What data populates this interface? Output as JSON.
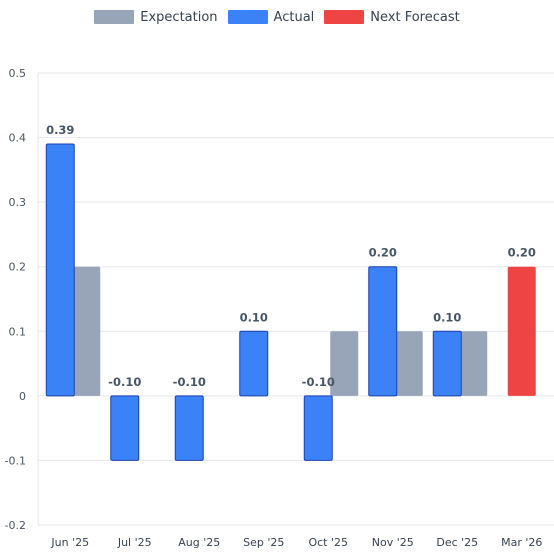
{
  "chart_data": {
    "type": "bar",
    "categories": [
      "Jun '25",
      "Jul '25",
      "Aug '25",
      "Sep '25",
      "Oct '25",
      "Nov '25",
      "Dec '25",
      "Mar '26"
    ],
    "series": [
      {
        "name": "Expectation",
        "color": "#98a4b7",
        "values": [
          0.2,
          null,
          null,
          null,
          0.1,
          0.1,
          0.1,
          null
        ]
      },
      {
        "name": "Actual",
        "color": "#3b82f6",
        "values": [
          0.39,
          -0.1,
          -0.1,
          0.1,
          -0.1,
          0.2,
          0.1,
          null
        ]
      },
      {
        "name": "Next Forecast",
        "color": "#ef4444",
        "values": [
          null,
          null,
          null,
          null,
          null,
          null,
          null,
          0.2
        ]
      }
    ],
    "data_labels": [
      "0.39",
      "-0.10",
      "-0.10",
      "0.10",
      "-0.10",
      "0.20",
      "0.10",
      "0.20"
    ],
    "y_ticks": [
      "0.5",
      "0.4",
      "0.3",
      "0.2",
      "0.1",
      "0",
      "-0.1",
      "-0.2"
    ],
    "ylim": [
      -0.2,
      0.5
    ],
    "title": "",
    "xlabel": "",
    "ylabel": "",
    "grid": true,
    "legend_position": "top"
  }
}
